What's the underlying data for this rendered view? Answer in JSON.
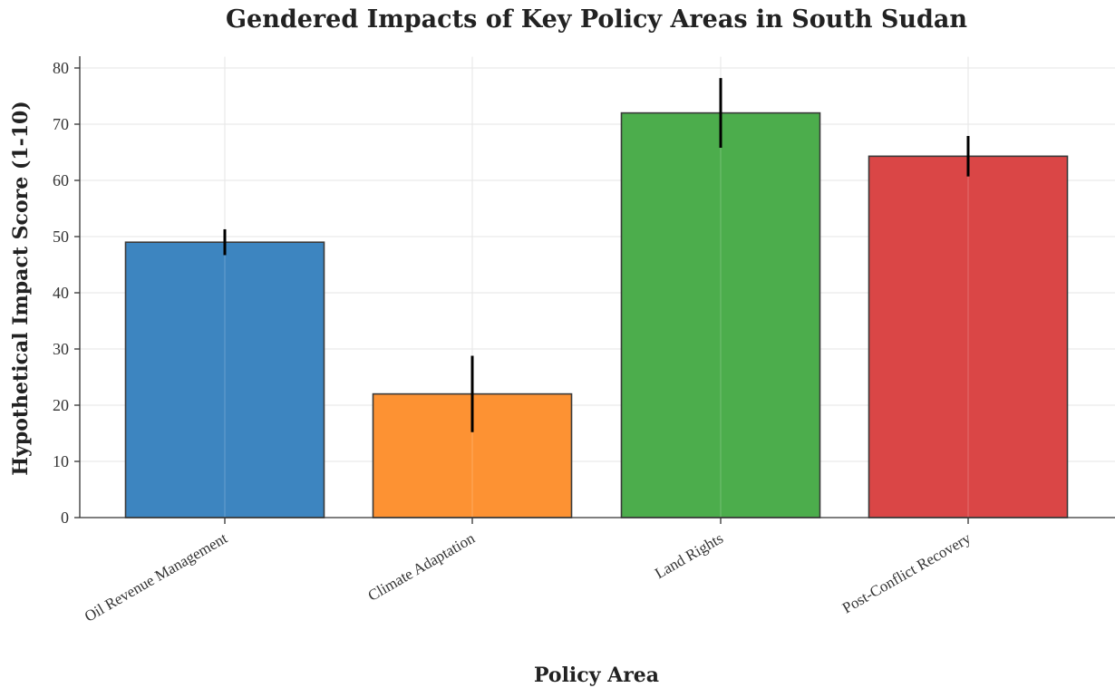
{
  "chart_data": {
    "type": "bar",
    "title": "Gendered Impacts of Key Policy Areas in South Sudan",
    "xlabel": "Policy Area",
    "ylabel": "Hypothetical Impact Score (1-10)",
    "categories": [
      "Oil Revenue Management",
      "Climate Adaptation",
      "Land Rights",
      "Post-Conflict Recovery"
    ],
    "values": [
      49,
      22,
      72,
      64.3
    ],
    "errors": [
      2.3,
      6.8,
      6.2,
      3.6
    ],
    "colors": [
      "#3d85c0",
      "#fd9233",
      "#4cad4c",
      "#da4646"
    ],
    "ylim": [
      0,
      82
    ],
    "yticks": [
      0,
      10,
      20,
      30,
      40,
      50,
      60,
      70,
      80
    ],
    "grid": true
  }
}
